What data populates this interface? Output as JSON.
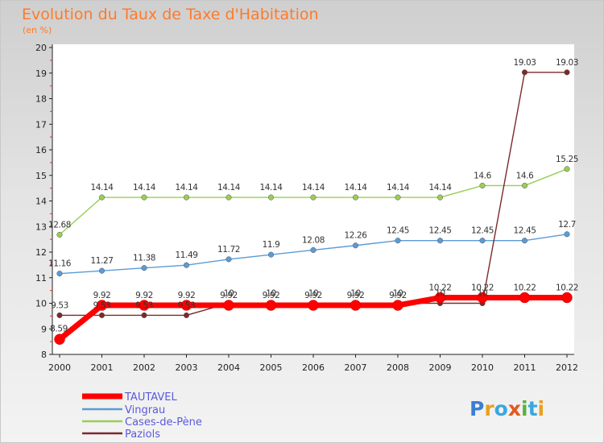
{
  "title": "Evolution du Taux de Taxe d'Habitation",
  "subtitle": "(en %)",
  "logo": "Proxiti",
  "chart_data": {
    "type": "line",
    "x": [
      "2000",
      "2001",
      "2002",
      "2003",
      "2004",
      "2005",
      "2006",
      "2007",
      "2008",
      "2009",
      "2010",
      "2011",
      "2012"
    ],
    "ylim": [
      8,
      20
    ],
    "yticks": [
      "8",
      "9",
      "10",
      "11",
      "12",
      "13",
      "14",
      "15",
      "16",
      "17",
      "18",
      "19",
      "20"
    ],
    "grid": false,
    "legend": "bottom-left",
    "series": [
      {
        "name": "TAUTAVEL",
        "color": "#ff0000",
        "values": [
          8.59,
          9.92,
          9.92,
          9.92,
          9.92,
          9.92,
          9.92,
          9.92,
          9.92,
          10.22,
          10.22,
          10.22,
          10.22
        ],
        "labels": [
          "8.59",
          "9.92",
          "9.92",
          "9.92",
          "9.92",
          "9.92",
          "9.92",
          "9.92",
          "9.92",
          "10.22",
          "10.22",
          "10.22",
          "10.22"
        ]
      },
      {
        "name": "Vingrau",
        "color": "#5b9bd5",
        "values": [
          11.16,
          11.27,
          11.38,
          11.49,
          11.72,
          11.9,
          12.08,
          12.26,
          12.45,
          12.45,
          12.45,
          12.45,
          12.7
        ],
        "labels": [
          "11.16",
          "11.27",
          "11.38",
          "11.49",
          "11.72",
          "11.9",
          "12.08",
          "12.26",
          "12.45",
          "12.45",
          "12.45",
          "12.45",
          "12.7"
        ]
      },
      {
        "name": "Cases-de-Pène",
        "color": "#9acd55",
        "values": [
          12.68,
          14.14,
          14.14,
          14.14,
          14.14,
          14.14,
          14.14,
          14.14,
          14.14,
          14.14,
          14.6,
          14.6,
          15.25
        ],
        "labels": [
          "12.68",
          "14.14",
          "14.14",
          "14.14",
          "14.14",
          "14.14",
          "14.14",
          "14.14",
          "14.14",
          "14.14",
          "14.6",
          "14.6",
          "15.25"
        ]
      },
      {
        "name": "Paziols",
        "color": "#7b2a2a",
        "values": [
          9.53,
          9.53,
          9.53,
          9.53,
          10,
          10,
          10,
          10,
          10,
          10,
          10,
          19.03,
          19.03
        ],
        "labels": [
          "9.53",
          "9.53",
          "9.53",
          "9.53",
          "10",
          "10",
          "10",
          "10",
          "10",
          "10",
          "10",
          "19.03",
          "19.03"
        ]
      }
    ]
  }
}
